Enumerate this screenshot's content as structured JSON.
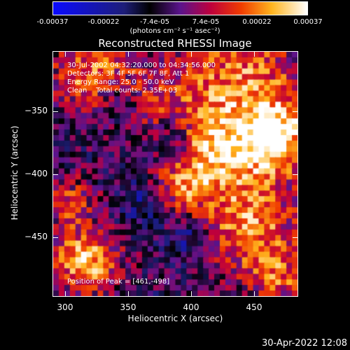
{
  "chart_data": {
    "type": "heatmap",
    "title": "Reconstructed RHESSI Image",
    "xlabel": "Heliocentric X (arcsec)",
    "ylabel": "Heliocentric Y (arcsec)",
    "xlim": [
      290,
      485
    ],
    "ylim": [
      -497,
      -302
    ],
    "xticks": [
      "300",
      "350",
      "400",
      "450"
    ],
    "yticks": [
      "-350",
      "-400",
      "-450"
    ],
    "colorbar": {
      "ticks": [
        "-0.00037",
        "-0.00022",
        "-7.4e-05",
        "7.4e-05",
        "0.00022",
        "0.00037"
      ],
      "unit": "(photons cm⁻² s⁻¹ asec⁻²)",
      "range": [
        -0.00037,
        0.00037
      ]
    },
    "annotations": [
      "30-Jul-2002 04:32:20.000 to 04:34:56.000",
      "Detectors: 3F 4F 5F 6F 7F 8F, Att 1",
      "Energy Range: 25.0 - 50.0 keV",
      "Clean    Total counts: 2.35E+03"
    ],
    "peak_label": "Position of Peak = [461,-498]"
  },
  "footer": {
    "date": "30-Apr-2022 12:08"
  }
}
